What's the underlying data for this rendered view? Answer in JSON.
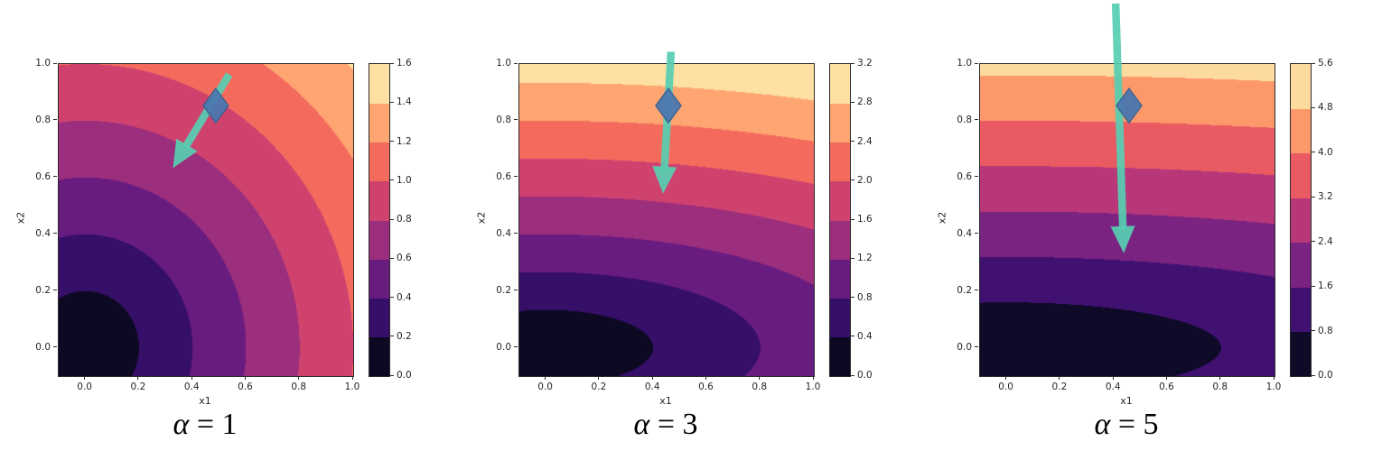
{
  "figure": {
    "background": "#ffffff",
    "axis_color": "#262626",
    "marker_color": "#4a78b0",
    "marker_edge_color": "#3a6190",
    "arrow_color": "#57cfb2",
    "colormap": {
      "name": "magma",
      "stops": [
        {
          "t": 0.0,
          "color": "#000004"
        },
        {
          "t": 0.1,
          "color": "#140e36"
        },
        {
          "t": 0.2,
          "color": "#3b0f70"
        },
        {
          "t": 0.3,
          "color": "#641a80"
        },
        {
          "t": 0.4,
          "color": "#8c2981"
        },
        {
          "t": 0.5,
          "color": "#b73779"
        },
        {
          "t": 0.6,
          "color": "#de4968"
        },
        {
          "t": 0.7,
          "color": "#f7705c"
        },
        {
          "t": 0.8,
          "color": "#fe9f6d"
        },
        {
          "t": 0.9,
          "color": "#fece91"
        },
        {
          "t": 1.0,
          "color": "#fcfdbf"
        }
      ]
    }
  },
  "chart_data": [
    {
      "type": "filled_contour",
      "caption": {
        "symbol": "α",
        "rest": " = 1",
        "text": "α = 1"
      },
      "alpha": 1,
      "function": "f(x1, x2) = sqrt(x1^2 + (alpha * x2)^2)",
      "xlabel": "x1",
      "ylabel": "x2",
      "xlim": [
        -0.1,
        1.0
      ],
      "ylim": [
        -0.1,
        1.0
      ],
      "xtick_labels": [
        "0.0",
        "0.2",
        "0.4",
        "0.6",
        "0.8",
        "1.0"
      ],
      "ytick_labels": [
        "0.0",
        "0.2",
        "0.4",
        "0.6",
        "0.8",
        "1.0"
      ],
      "level_step": 0.2,
      "level_max": 1.6,
      "n_bands": 8,
      "colorbar_tick_labels": [
        "0.0",
        "0.2",
        "0.4",
        "0.6",
        "0.8",
        "1.0",
        "1.2",
        "1.4",
        "1.6"
      ],
      "marker": {
        "x": 0.49,
        "y": 0.85
      },
      "gradient_arrow": {
        "tail": [
          0.54,
          0.96
        ],
        "tip": [
          0.33,
          0.63
        ]
      }
    },
    {
      "type": "filled_contour",
      "caption": {
        "symbol": "α",
        "rest": " = 3",
        "text": "α = 3"
      },
      "alpha": 3,
      "function": "f(x1, x2) = sqrt(x1^2 + (alpha * x2)^2)",
      "xlabel": "x1",
      "ylabel": "x2",
      "xlim": [
        -0.1,
        1.0
      ],
      "ylim": [
        -0.1,
        1.0
      ],
      "xtick_labels": [
        "0.0",
        "0.2",
        "0.4",
        "0.6",
        "0.8",
        "1.0"
      ],
      "ytick_labels": [
        "0.0",
        "0.2",
        "0.4",
        "0.6",
        "0.8",
        "1.0"
      ],
      "level_step": 0.4,
      "level_max": 3.2,
      "n_bands": 8,
      "colorbar_tick_labels": [
        "0.0",
        "0.4",
        "0.8",
        "1.2",
        "1.6",
        "2.0",
        "2.4",
        "2.8",
        "3.2"
      ],
      "marker": {
        "x": 0.46,
        "y": 0.85
      },
      "gradient_arrow": {
        "tail": [
          0.47,
          1.04
        ],
        "tip": [
          0.44,
          0.54
        ]
      }
    },
    {
      "type": "filled_contour",
      "caption": {
        "symbol": "α",
        "rest": " = 5",
        "text": "α = 5"
      },
      "alpha": 5,
      "function": "f(x1, x2) = sqrt(x1^2 + (alpha * x2)^2)",
      "xlabel": "x1",
      "ylabel": "x2",
      "xlim": [
        -0.1,
        1.0
      ],
      "ylim": [
        -0.1,
        1.0
      ],
      "xtick_labels": [
        "0.0",
        "0.2",
        "0.4",
        "0.6",
        "0.8",
        "1.0"
      ],
      "ytick_labels": [
        "0.0",
        "0.2",
        "0.4",
        "0.6",
        "0.8",
        "1.0"
      ],
      "level_step": 0.8,
      "level_max": 5.6,
      "n_bands": 7,
      "colorbar_tick_labels": [
        "0.0",
        "0.8",
        "1.6",
        "2.4",
        "3.2",
        "4.0",
        "4.8",
        "5.6"
      ],
      "marker": {
        "x": 0.46,
        "y": 0.85
      },
      "gradient_arrow": {
        "tail": [
          0.41,
          1.21
        ],
        "tip": [
          0.44,
          0.33
        ]
      }
    }
  ]
}
